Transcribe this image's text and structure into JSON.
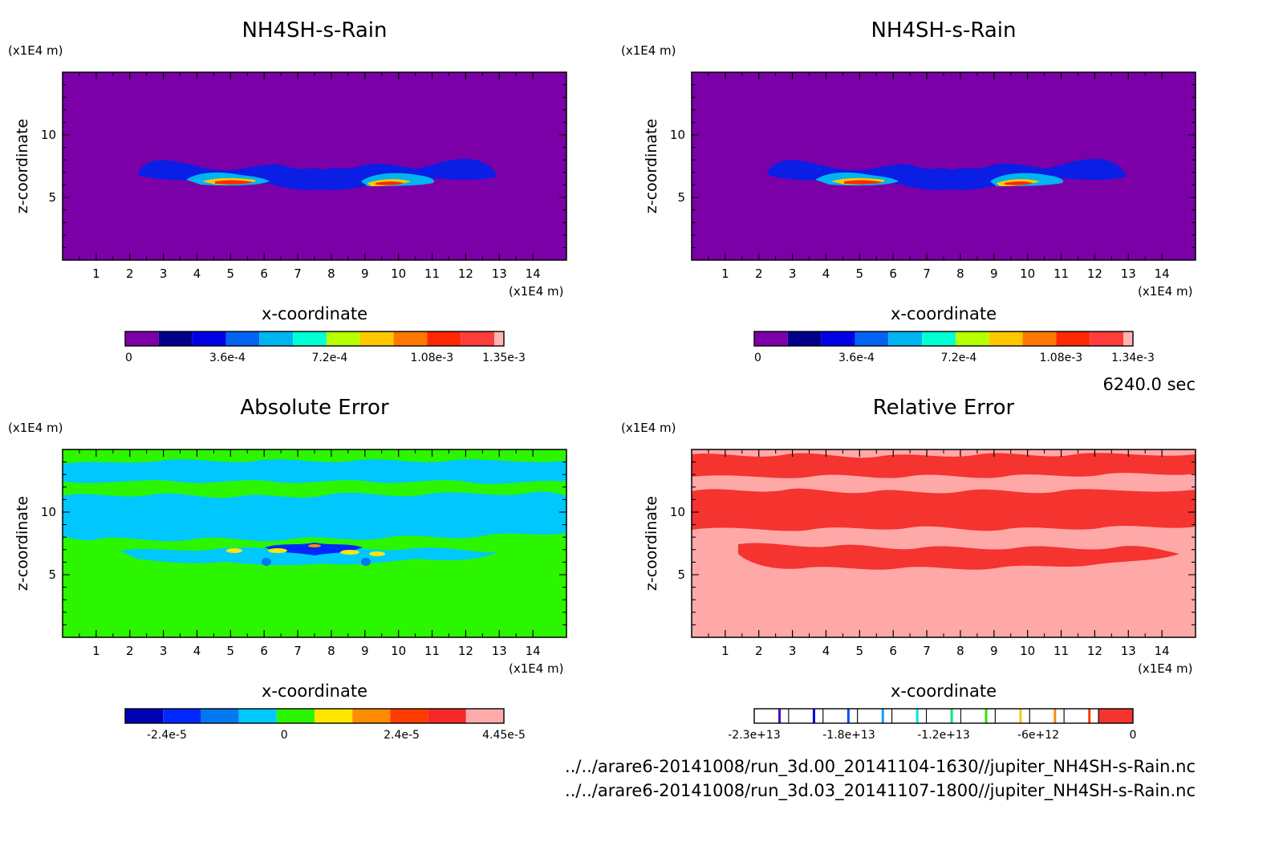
{
  "time_label": "6240.0 sec",
  "file_paths": [
    "../../arare6-20141008/run_3d.00_20141104-1630//jupiter_NH4SH-s-Rain.nc",
    "../../arare6-20141008/run_3d.03_20141107-1800//jupiter_NH4SH-s-Rain.nc"
  ],
  "colors": {
    "bg_purple": "#7b00a8",
    "abs_green": "#2cf500",
    "abs_cyan": "#00c8ff",
    "rel_pink": "#ffa8a8",
    "rel_red": "#f5332f"
  },
  "chart_data": [
    {
      "type": "heatmap",
      "title": "NH4SH-s-Rain",
      "xlabel": "x-coordinate",
      "ylabel": "z-coordinate",
      "x_unit": "(x1E4 m)",
      "z_unit": "(x1E4 m)",
      "xlim": [
        0,
        15
      ],
      "ylim": [
        0,
        15
      ],
      "x_ticks": [
        "1",
        "2",
        "3",
        "4",
        "5",
        "6",
        "7",
        "8",
        "9",
        "10",
        "11",
        "12",
        "13",
        "14"
      ],
      "y_ticks": [
        "5",
        "10"
      ],
      "colorbar": {
        "colors": [
          "#7b00a8",
          "#00008c",
          "#0000e6",
          "#0064f0",
          "#00b4f0",
          "#00ffd2",
          "#b4ff00",
          "#ffc800",
          "#ff7800",
          "#ff2800",
          "#ff3c3c",
          "#ffb4b4"
        ],
        "tick_labels": [
          "0",
          "3.6e-4",
          "7.2e-4",
          "1.08e-3",
          "1.35e-3"
        ]
      }
    },
    {
      "type": "heatmap",
      "title": "NH4SH-s-Rain",
      "xlabel": "x-coordinate",
      "ylabel": "z-coordinate",
      "x_unit": "(x1E4 m)",
      "z_unit": "(x1E4 m)",
      "xlim": [
        0,
        15
      ],
      "ylim": [
        0,
        15
      ],
      "x_ticks": [
        "1",
        "2",
        "3",
        "4",
        "5",
        "6",
        "7",
        "8",
        "9",
        "10",
        "11",
        "12",
        "13",
        "14"
      ],
      "y_ticks": [
        "5",
        "10"
      ],
      "colorbar": {
        "colors": [
          "#7b00a8",
          "#00008c",
          "#0000e6",
          "#0064f0",
          "#00b4f0",
          "#00ffd2",
          "#b4ff00",
          "#ffc800",
          "#ff7800",
          "#ff2800",
          "#ff3c3c",
          "#ffb4b4"
        ],
        "tick_labels": [
          "0",
          "3.6e-4",
          "7.2e-4",
          "1.08e-3",
          "1.34e-3"
        ]
      }
    },
    {
      "type": "heatmap",
      "title": "Absolute Error",
      "xlabel": "x-coordinate",
      "ylabel": "z-coordinate",
      "x_unit": "(x1E4 m)",
      "z_unit": "(x1E4 m)",
      "xlim": [
        0,
        15
      ],
      "ylim": [
        0,
        15
      ],
      "x_ticks": [
        "1",
        "2",
        "3",
        "4",
        "5",
        "6",
        "7",
        "8",
        "9",
        "10",
        "11",
        "12",
        "13",
        "14"
      ],
      "y_ticks": [
        "5",
        "10"
      ],
      "colorbar": {
        "colors": [
          "#0000b4",
          "#0028ff",
          "#0078f0",
          "#00c8ff",
          "#2cf500",
          "#ffe600",
          "#ff8c00",
          "#ff3c00",
          "#f52828",
          "#ffaaaa"
        ],
        "tick_labels": [
          "-2.4e-5",
          "0",
          "2.4e-5",
          "4.45e-5"
        ]
      }
    },
    {
      "type": "heatmap",
      "title": "Relative Error",
      "xlabel": "x-coordinate",
      "ylabel": "z-coordinate",
      "x_unit": "(x1E4 m)",
      "z_unit": "(x1E4 m)",
      "xlim": [
        0,
        15
      ],
      "ylim": [
        0,
        15
      ],
      "x_ticks": [
        "1",
        "2",
        "3",
        "4",
        "5",
        "6",
        "7",
        "8",
        "9",
        "10",
        "11",
        "12",
        "13",
        "14"
      ],
      "y_ticks": [
        "5",
        "10"
      ],
      "colorbar": {
        "colors": [
          "#ffffff",
          "#ffffff",
          "#ffffff",
          "#ffffff",
          "#ffffff",
          "#ffffff",
          "#ffffff",
          "#ffffff",
          "#ffffff",
          "#ffffff",
          "#f5332f"
        ],
        "line_colors": [
          "#5000c8",
          "#0000e6",
          "#0050ff",
          "#00a0ff",
          "#00e6e6",
          "#00e678",
          "#32e600",
          "#ffc800",
          "#ff8c00",
          "#ff3c00"
        ],
        "tick_labels": [
          "-2.3e+13",
          "-1.8e+13",
          "-1.2e+13",
          "-6e+12",
          "0"
        ]
      }
    }
  ]
}
